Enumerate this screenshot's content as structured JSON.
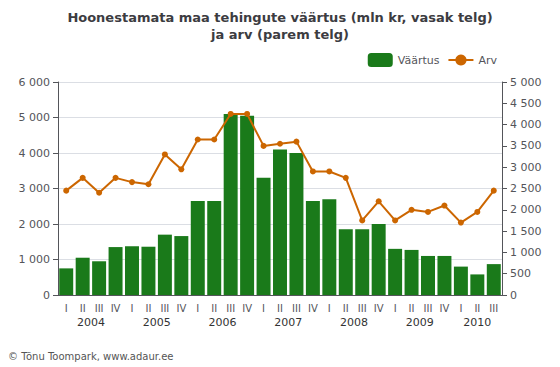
{
  "chart_data": {
    "type": "bar",
    "title": "Hoonestamata maa tehingute väärtus (mln kr, vasak telg)\nja arv (parem telg)",
    "categories": [
      "I",
      "II",
      "III",
      "IV",
      "I",
      "II",
      "III",
      "IV",
      "I",
      "II",
      "III",
      "IV",
      "I",
      "II",
      "III",
      "IV",
      "I",
      "II",
      "III",
      "IV",
      "I",
      "II",
      "III",
      "IV",
      "I",
      "II",
      "III"
    ],
    "series": [
      {
        "name": "Väärtus",
        "type": "bar",
        "color": "#1a7a1a",
        "values": [
          750,
          1050,
          950,
          1350,
          1370,
          1360,
          1700,
          1660,
          2650,
          2650,
          5100,
          5050,
          3300,
          4100,
          4000,
          2650,
          2700,
          1850,
          1850,
          2000,
          1300,
          1270,
          1100,
          1100,
          800,
          580,
          870
        ]
      },
      {
        "name": "Arv",
        "type": "line",
        "axis": "y2",
        "color": "#cc6600",
        "marker": "circle",
        "values": [
          2450,
          2750,
          2400,
          2750,
          2650,
          2600,
          3300,
          2950,
          3650,
          3650,
          4250,
          4250,
          3500,
          3550,
          3600,
          2900,
          2900,
          2750,
          1750,
          2200,
          1750,
          2000,
          1950,
          2100,
          1700,
          1950,
          2450
        ]
      }
    ],
    "ylim": [
      0,
      6000
    ],
    "yticks": [
      0,
      {
        "value": 1000,
        "label": "1 000"
      },
      {
        "value": 2000,
        "label": "2 000"
      },
      {
        "value": 3000,
        "label": "3 000"
      },
      {
        "value": 4000,
        "label": "4 000"
      },
      {
        "value": 5000,
        "label": "5 000"
      },
      {
        "value": 6000,
        "label": "6 000"
      }
    ],
    "y2lim": [
      0,
      5000
    ],
    "y2ticks": [
      0,
      500,
      {
        "value": 1000,
        "label": "1 000"
      },
      {
        "value": 1500,
        "label": "1 500"
      },
      {
        "value": 2000,
        "label": "2 000"
      },
      {
        "value": 2500,
        "label": "2 500"
      },
      {
        "value": 3000,
        "label": "3 000"
      },
      {
        "value": 3500,
        "label": "3 500"
      },
      {
        "value": 4000,
        "label": "4 000"
      },
      {
        "value": 4500,
        "label": "4 500"
      },
      {
        "value": 5000,
        "label": "5 000"
      }
    ],
    "annotations": [
      {
        "text": "2004",
        "x": 1.5
      },
      {
        "text": "2005",
        "x": 5.5
      },
      {
        "text": "2006",
        "x": 9.5
      },
      {
        "text": "2007",
        "x": 13.5
      },
      {
        "text": "2008",
        "x": 17.5
      },
      {
        "text": "2009",
        "x": 21.5
      },
      {
        "text": "2010",
        "x": 25.0
      }
    ],
    "watermark": "© Tõnu Toompark, www.adaur.ee",
    "grid": true,
    "legend": "upper right"
  }
}
